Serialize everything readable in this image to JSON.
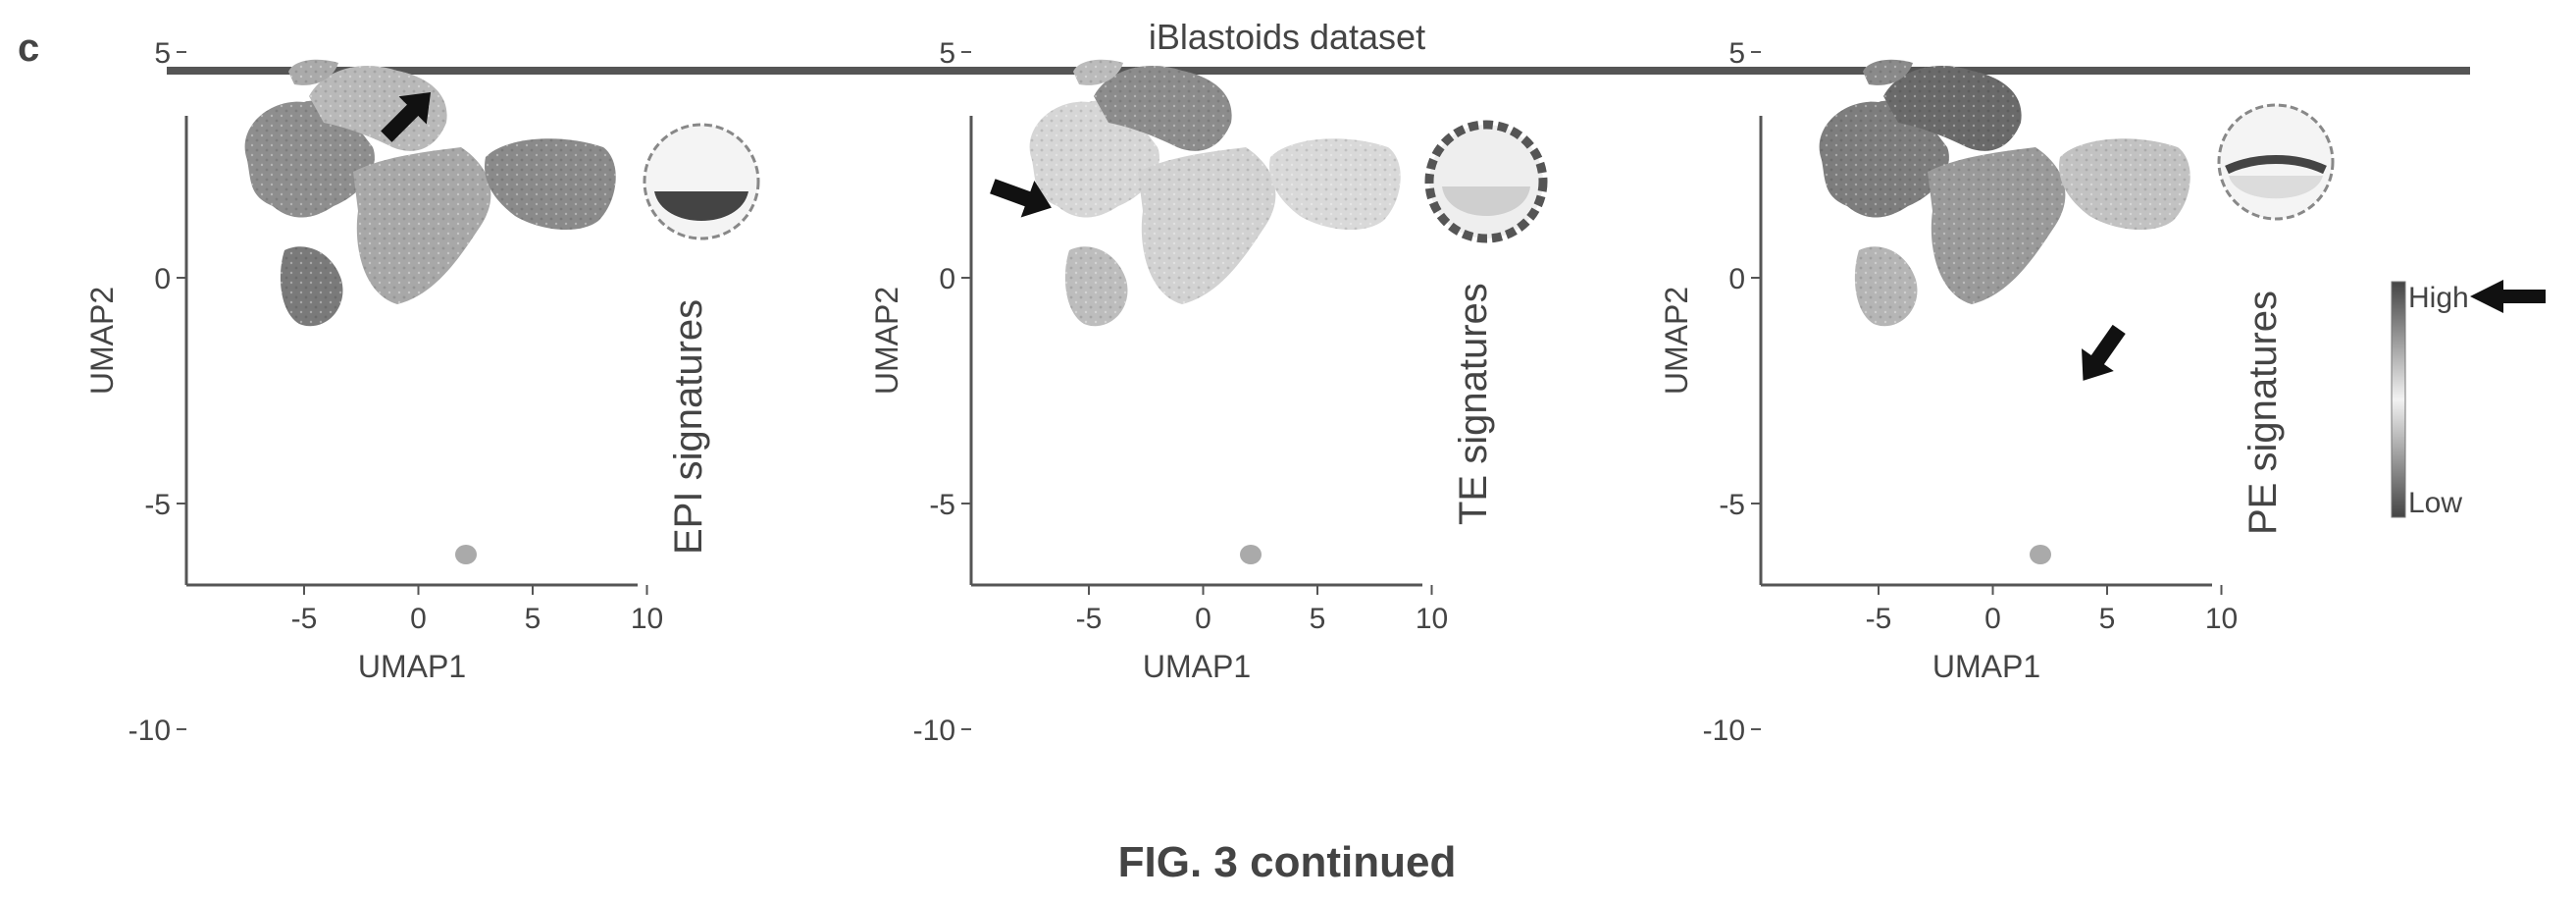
{
  "panel_label": "c",
  "dataset_title": "iBlastoids dataset",
  "figure_caption": "FIG. 3 continued",
  "shared_axes": {
    "xlabel": "UMAP1",
    "ylabel": "UMAP2",
    "xticks": [
      "-5",
      "0",
      "5",
      "10"
    ],
    "yticks": [
      "5",
      "0",
      "-5",
      "-10"
    ]
  },
  "panels": [
    {
      "signature_label": "EPI signatures",
      "icon": "blastocyst-epi-highlight-icon"
    },
    {
      "signature_label": "TE signatures",
      "icon": "blastocyst-te-highlight-icon"
    },
    {
      "signature_label": "PE signatures",
      "icon": "blastocyst-pe-highlight-icon"
    }
  ],
  "colorbar": {
    "high_label": "High",
    "low_label": "Low"
  },
  "colors": {
    "axis": "#555555",
    "high": "#4a4a4a",
    "low": "#e6e6e6",
    "arrow": "#111111"
  }
}
